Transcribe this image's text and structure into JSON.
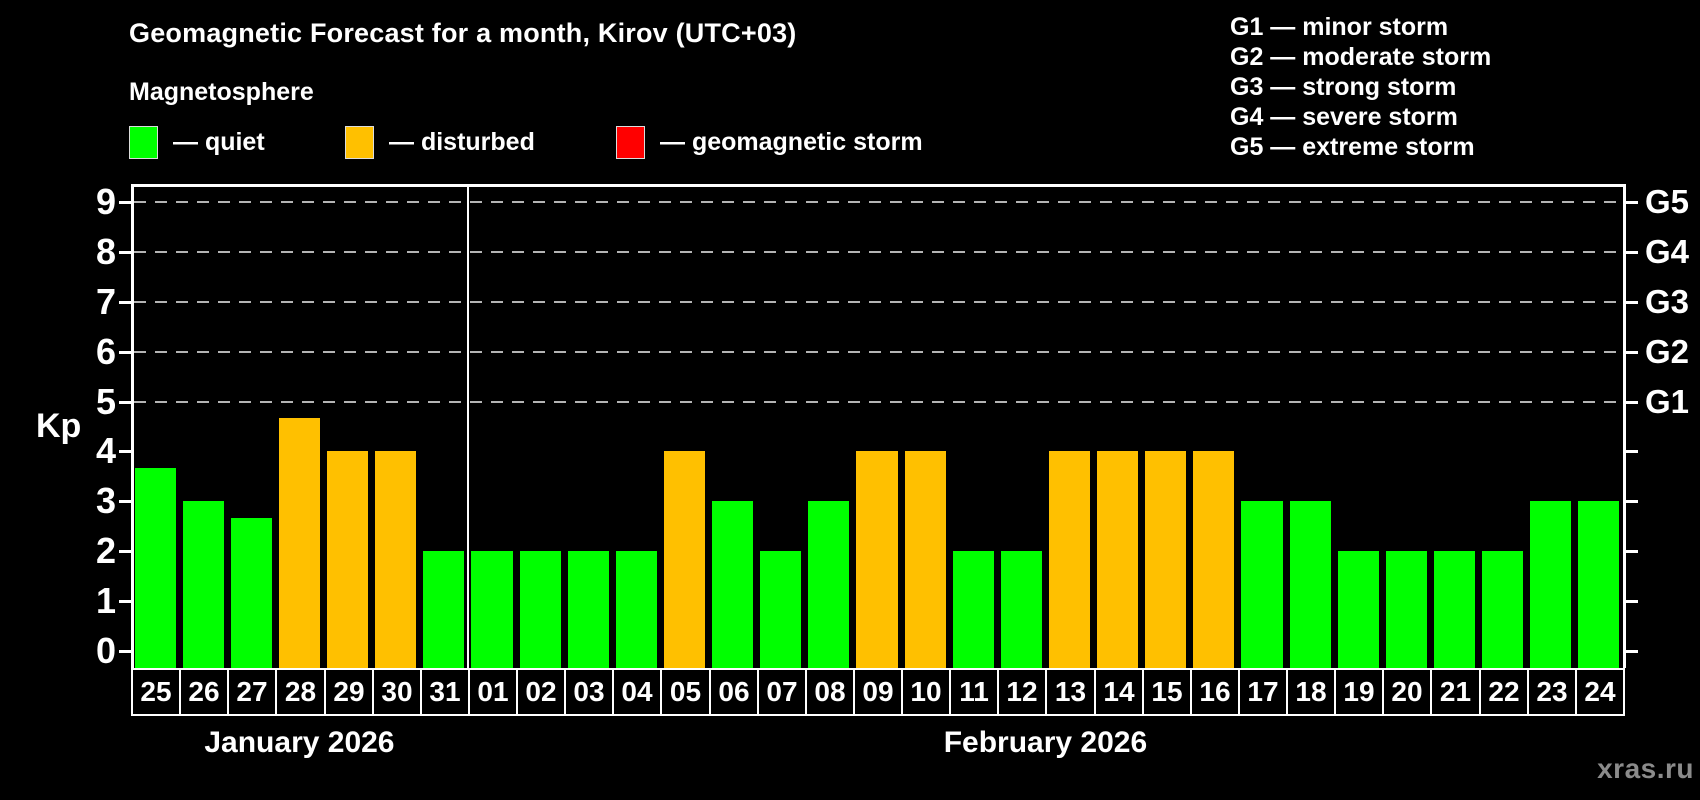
{
  "title": "Geomagnetic Forecast for a month, Kirov (UTC+03)",
  "subtitle": "Magnetosphere",
  "legend": {
    "items": [
      {
        "name": "quiet",
        "label": "— quiet",
        "color": "#00ff00"
      },
      {
        "name": "disturbed",
        "label": "— disturbed",
        "color": "#ffc000"
      },
      {
        "name": "geomagnetic-storm",
        "label": "— geomagnetic storm",
        "color": "#ff0000"
      }
    ]
  },
  "storm_scale_legend": [
    "G1 — minor storm",
    "G2 — moderate storm",
    "G3 — strong storm",
    "G4 — severe storm",
    "G5 — extreme storm"
  ],
  "watermark": "xras.ru",
  "chart_data": {
    "type": "bar",
    "title": "Geomagnetic Forecast for a month, Kirov (UTC+03)",
    "ylabel": "Kp",
    "ylim": [
      -0.35,
      9.35
    ],
    "yticks": [
      0,
      1,
      2,
      3,
      4,
      5,
      6,
      7,
      8,
      9
    ],
    "grid": "dashed horizontal at Kp 5..9 only",
    "gridlines_at": [
      5,
      6,
      7,
      8,
      9
    ],
    "right_axis_labels": [
      {
        "kp": 5,
        "label": "G1"
      },
      {
        "kp": 6,
        "label": "G2"
      },
      {
        "kp": 7,
        "label": "G3"
      },
      {
        "kp": 8,
        "label": "G4"
      },
      {
        "kp": 9,
        "label": "G5"
      }
    ],
    "categories": [
      "25",
      "26",
      "27",
      "28",
      "29",
      "30",
      "31",
      "01",
      "02",
      "03",
      "04",
      "05",
      "06",
      "07",
      "08",
      "09",
      "10",
      "11",
      "12",
      "13",
      "14",
      "15",
      "16",
      "17",
      "18",
      "19",
      "20",
      "21",
      "22",
      "23",
      "24"
    ],
    "values": [
      3.67,
      3,
      2.67,
      4.67,
      4,
      4,
      2,
      2,
      2,
      2,
      2,
      4,
      3,
      2,
      3,
      4,
      4,
      2,
      2,
      4,
      4,
      4,
      4,
      3,
      3,
      2,
      2,
      2,
      2,
      3,
      3
    ],
    "states": [
      "quiet",
      "quiet",
      "quiet",
      "disturbed",
      "disturbed",
      "disturbed",
      "quiet",
      "quiet",
      "quiet",
      "quiet",
      "quiet",
      "disturbed",
      "quiet",
      "quiet",
      "quiet",
      "disturbed",
      "disturbed",
      "quiet",
      "quiet",
      "disturbed",
      "disturbed",
      "disturbed",
      "disturbed",
      "quiet",
      "quiet",
      "quiet",
      "quiet",
      "quiet",
      "quiet",
      "quiet",
      "quiet"
    ],
    "state_colors": {
      "quiet": "#00ff00",
      "disturbed": "#ffc000",
      "storm": "#ff0000"
    },
    "months": [
      {
        "label": "January 2026",
        "start_index": 0,
        "days": 7
      },
      {
        "label": "February 2026",
        "start_index": 7,
        "days": 24
      }
    ],
    "month_separator_after_index": 6,
    "colors": {
      "background": "#000000",
      "axis": "#ffffff",
      "gridline": "#b4b4b4",
      "watermark_text": "#8b8b8b"
    }
  }
}
